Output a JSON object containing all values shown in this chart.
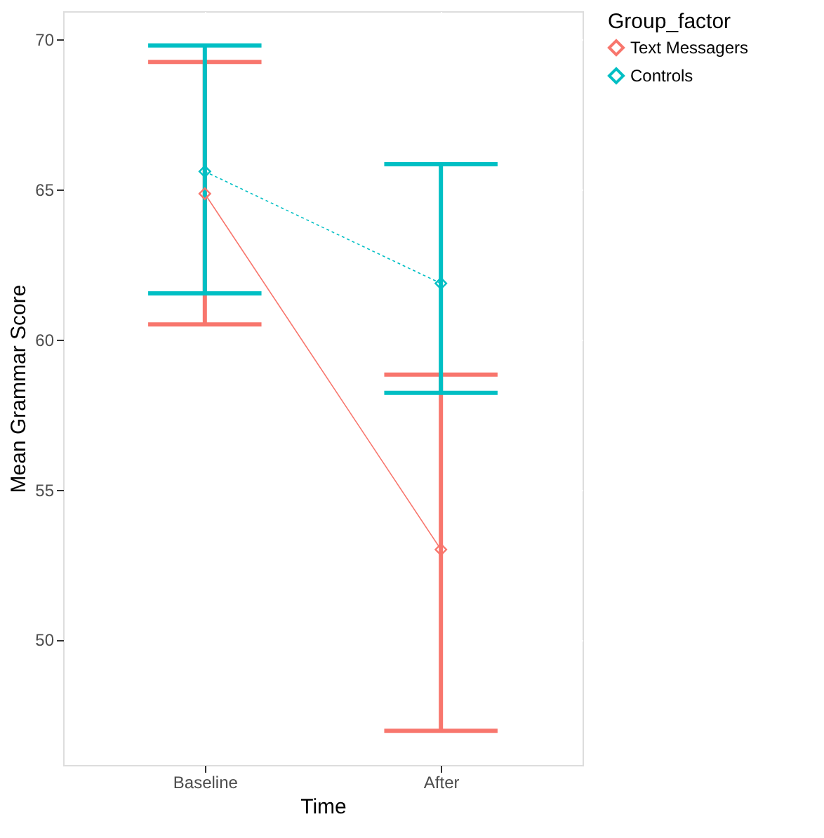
{
  "chart_data": {
    "type": "line",
    "xlabel": "Time",
    "ylabel": "Mean Grammar Score",
    "legend_title": "Group_factor",
    "categories": [
      "Baseline",
      "After"
    ],
    "series": [
      {
        "name": "Text Messagers",
        "color": "#f8766d",
        "values": [
          64.86,
          53.0
        ],
        "errors": [
          [
            60.5,
            69.25
          ],
          [
            46.96,
            58.83
          ]
        ],
        "line_style": "solid"
      },
      {
        "name": "Controls",
        "color": "#00bfc4",
        "values": [
          65.6,
          61.87
        ],
        "errors": [
          [
            61.54,
            69.8
          ],
          [
            58.22,
            65.84
          ]
        ],
        "line_style": "dotted"
      }
    ],
    "marker": "diamond",
    "ylim": [
      45.82,
      70.94
    ],
    "yticks": [
      50,
      55,
      60,
      65,
      70
    ],
    "grid": true,
    "legend": "right"
  }
}
